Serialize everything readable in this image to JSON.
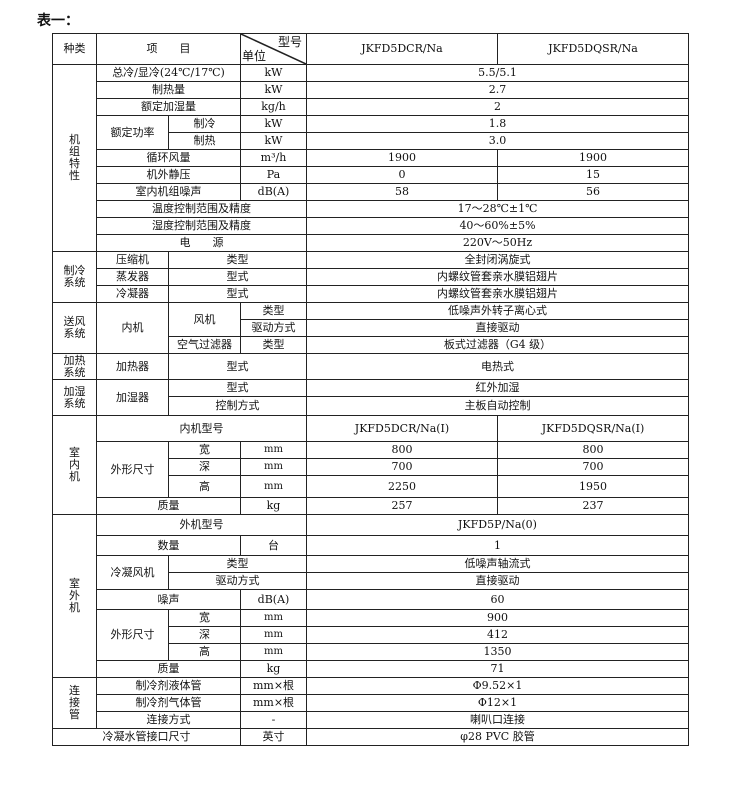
{
  "title": "表一：",
  "table": {
    "r": [
      [
        "种类",
        "项　　目",
        "型号",
        "单位",
        "JKFD5DCR/Na",
        "JKFD5DQSR/Na"
      ],
      [
        "机组特性",
        "总冷/显冷(24℃/17℃)",
        "kW",
        "5.5/5.1"
      ],
      [
        "制热量",
        "kW",
        "2.7"
      ],
      [
        "额定加湿量",
        "kg/h",
        "2"
      ],
      [
        "额定功率",
        "制冷",
        "kW",
        "1.8"
      ],
      [
        "制热",
        "kW",
        "3.0"
      ],
      [
        "循环风量",
        "m³/h",
        "1900",
        "1900"
      ],
      [
        "机外静压",
        "Pa",
        "0",
        "15"
      ],
      [
        "室内机组噪声",
        "dB(A)",
        "58",
        "56"
      ],
      [
        "温度控制范围及精度",
        "17～28℃±1℃"
      ],
      [
        "湿度控制范围及精度",
        "40～60%±5%"
      ],
      [
        "电　　源",
        "220V～50Hz"
      ],
      [
        "制冷系统",
        "压缩机",
        "类型",
        "全封闭涡旋式"
      ],
      [
        "蒸发器",
        "型式",
        "内螺纹管套亲水膜铝翅片"
      ],
      [
        "冷凝器",
        "型式",
        "内螺纹管套亲水膜铝翅片"
      ],
      [
        "送风系统",
        "内机",
        "风机",
        "类型",
        "低噪声外转子离心式"
      ],
      [
        "驱动方式",
        "直接驱动"
      ],
      [
        "空气过滤器",
        "类型",
        "板式过滤器（G4 级）"
      ],
      [
        "加热系统",
        "加热器",
        "型式",
        "电热式"
      ],
      [
        "加湿系统",
        "加湿器",
        "型式",
        "红外加湿"
      ],
      [
        "控制方式",
        "主板自动控制"
      ],
      [
        "室内机",
        "内机型号",
        "JKFD5DCR/Na(I)",
        "JKFD5DQSR/Na(I)"
      ],
      [
        "外形尺寸",
        "宽",
        "mm",
        "800",
        "800"
      ],
      [
        "深",
        "mm",
        "700",
        "700"
      ],
      [
        "高",
        "mm",
        "2250",
        "1950"
      ],
      [
        "质量",
        "kg",
        "257",
        "237"
      ],
      [
        "室外机",
        "外机型号",
        "JKFD5P/Na(0)"
      ],
      [
        "数量",
        "台",
        "1"
      ],
      [
        "冷凝风机",
        "类型",
        "低噪声轴流式"
      ],
      [
        "驱动方式",
        "直接驱动"
      ],
      [
        "噪声",
        "dB(A)",
        "60"
      ],
      [
        "外形尺寸",
        "宽",
        "mm",
        "900"
      ],
      [
        "深",
        "mm",
        "412"
      ],
      [
        "高",
        "mm",
        "1350"
      ],
      [
        "质量",
        "kg",
        "71"
      ],
      [
        "连接管",
        "制冷剂液体管",
        "mm×根",
        "Φ9.52×1"
      ],
      [
        "制冷剂气体管",
        "mm×根",
        "Φ12×1"
      ],
      [
        "连接方式",
        "-",
        "喇叭口连接"
      ],
      [
        "冷凝水管接口尺寸",
        "英寸",
        "φ28 PVC 胶管"
      ]
    ]
  }
}
